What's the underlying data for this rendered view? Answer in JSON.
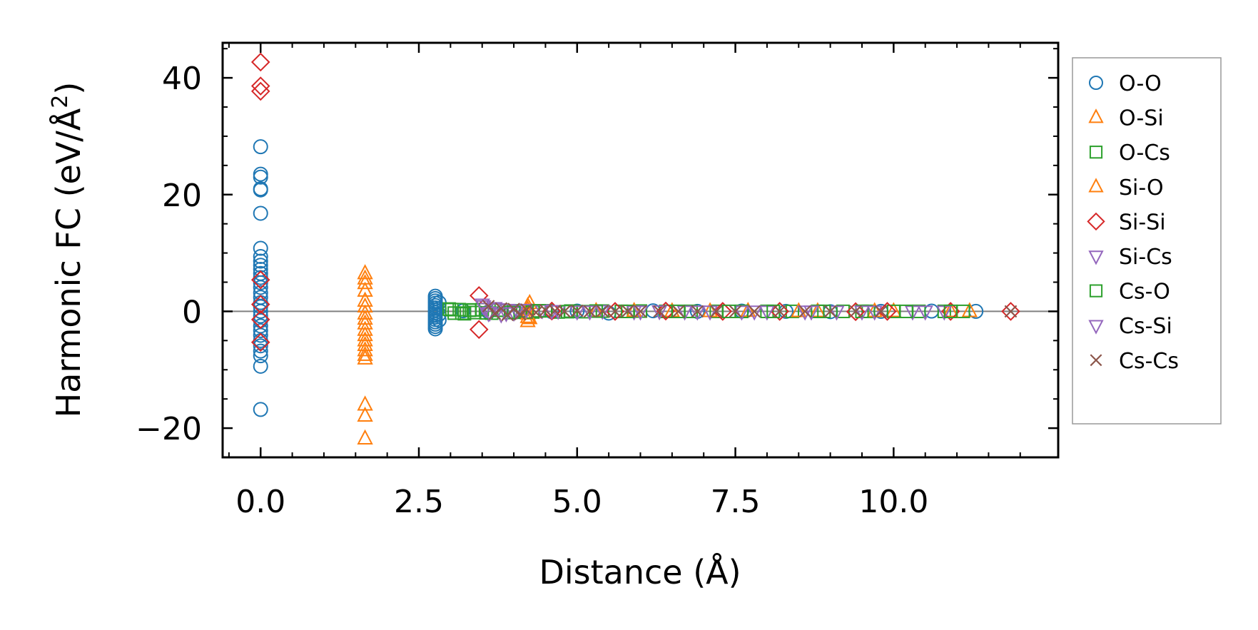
{
  "chart_data": {
    "type": "scatter",
    "title": "",
    "xlabel": "Distance (Å)",
    "ylabel_main": "Harmonic FC (eV/Å",
    "ylabel_sup": "2",
    "ylabel_close": ")",
    "xlim": [
      -0.6,
      12.6
    ],
    "ylim": [
      -25,
      46
    ],
    "xticks": [
      0.0,
      2.5,
      5.0,
      7.5,
      10.0
    ],
    "xtick_labels": [
      "0.0",
      "2.5",
      "5.0",
      "7.5",
      "10.0"
    ],
    "yticks": [
      -20,
      0,
      20,
      40
    ],
    "ytick_labels": [
      "−20",
      "0",
      "20",
      "40"
    ],
    "zero_line": true,
    "legend_position": "outside-right",
    "series": [
      {
        "name": "O-O",
        "marker": "circle",
        "color": "#1f77b4",
        "points": [
          [
            0,
            28.2
          ],
          [
            0,
            23.5
          ],
          [
            0,
            23
          ],
          [
            0,
            21
          ],
          [
            0,
            20.8
          ],
          [
            0,
            16.8
          ],
          [
            0,
            10.8
          ],
          [
            0,
            9.4
          ],
          [
            0,
            8.6
          ],
          [
            0,
            7.9
          ],
          [
            0,
            7.2
          ],
          [
            0,
            6.5
          ],
          [
            0,
            5.8
          ],
          [
            0,
            4.9
          ],
          [
            0,
            4.1
          ],
          [
            0,
            3.2
          ],
          [
            0,
            2.4
          ],
          [
            0,
            1.5
          ],
          [
            0,
            0.8
          ],
          [
            0,
            0
          ],
          [
            0,
            -0.8
          ],
          [
            0,
            -1.6
          ],
          [
            0,
            -2.5
          ],
          [
            0,
            -3.3
          ],
          [
            0,
            -4.1
          ],
          [
            0,
            -5
          ],
          [
            0,
            -5.9
          ],
          [
            0,
            -6.8
          ],
          [
            0,
            -7.6
          ],
          [
            0,
            -9.4
          ],
          [
            0,
            -16.8
          ],
          [
            2.76,
            2.6
          ],
          [
            2.76,
            2.2
          ],
          [
            2.76,
            1.8
          ],
          [
            2.76,
            1.4
          ],
          [
            2.76,
            1.0
          ],
          [
            2.76,
            0.6
          ],
          [
            2.76,
            0.2
          ],
          [
            2.76,
            -0.2
          ],
          [
            2.76,
            -0.6
          ],
          [
            2.76,
            -1.0
          ],
          [
            2.76,
            -1.4
          ],
          [
            2.76,
            -1.8
          ],
          [
            2.76,
            -2.2
          ],
          [
            2.76,
            -2.6
          ],
          [
            2.76,
            -3.0
          ],
          [
            2.82,
            1.5
          ],
          [
            2.82,
            0.5
          ],
          [
            2.82,
            -0.5
          ],
          [
            2.82,
            -1.5
          ],
          [
            3.2,
            0.1
          ],
          [
            3.6,
            -0.1
          ],
          [
            4.1,
            0.05
          ],
          [
            4.6,
            -0.05
          ],
          [
            5.0,
            0.05
          ],
          [
            5.5,
            -0.3
          ],
          [
            6.2,
            0.1
          ],
          [
            6.9,
            0.0
          ],
          [
            7.6,
            0.05
          ],
          [
            8.3,
            0.0
          ],
          [
            9.0,
            -0.05
          ],
          [
            9.8,
            0.0
          ],
          [
            10.6,
            0.05
          ],
          [
            11.3,
            0.0
          ]
        ]
      },
      {
        "name": "O-Si",
        "marker": "triangle-up",
        "color": "#ff7f0e",
        "points": [
          [
            1.65,
            6.5
          ],
          [
            1.65,
            5.6
          ],
          [
            1.65,
            4.8
          ],
          [
            1.65,
            3.5
          ],
          [
            1.65,
            1.8
          ],
          [
            1.65,
            0.8
          ],
          [
            1.65,
            -0.4
          ],
          [
            1.65,
            -1.3
          ],
          [
            1.65,
            -2.1
          ],
          [
            1.65,
            -3.2
          ],
          [
            1.65,
            -4.1
          ],
          [
            1.65,
            -5.0
          ],
          [
            1.65,
            -5.8
          ],
          [
            1.65,
            -6.7
          ],
          [
            1.65,
            -7.5
          ],
          [
            1.65,
            -8.1
          ],
          [
            1.65,
            -16
          ],
          [
            1.65,
            -17.9
          ],
          [
            1.65,
            -21.8
          ],
          [
            4.22,
            0.9
          ],
          [
            4.22,
            0.3
          ],
          [
            4.22,
            -0.4
          ],
          [
            4.22,
            -1.0
          ],
          [
            4.22,
            -1.7
          ],
          [
            5.3,
            0.05
          ],
          [
            6.5,
            0.0
          ],
          [
            7.7,
            0.05
          ],
          [
            8.8,
            0.0
          ],
          [
            10.0,
            0.0
          ],
          [
            11.2,
            0.0
          ]
        ]
      },
      {
        "name": "O-Cs",
        "marker": "square",
        "color": "#2ca02c",
        "points": [
          [
            2.98,
            0.4
          ],
          [
            3.06,
            -0.3
          ],
          [
            3.14,
            0.3
          ],
          [
            3.22,
            -0.4
          ],
          [
            3.3,
            0.2
          ],
          [
            3.38,
            -0.2
          ],
          [
            3.5,
            0.3
          ],
          [
            3.65,
            -0.3
          ],
          [
            3.8,
            0.2
          ],
          [
            3.95,
            -0.2
          ],
          [
            4.1,
            0.1
          ],
          [
            4.3,
            -0.1
          ],
          [
            4.5,
            0.1
          ],
          [
            4.7,
            -0.1
          ],
          [
            4.9,
            0.05
          ],
          [
            5.1,
            -0.05
          ],
          [
            5.4,
            0.05
          ],
          [
            5.7,
            0.0
          ],
          [
            6.0,
            0.05
          ],
          [
            6.4,
            0.0
          ],
          [
            6.8,
            0.0
          ],
          [
            7.2,
            0.0
          ],
          [
            7.6,
            0.0
          ],
          [
            8.0,
            0.0
          ],
          [
            8.4,
            0.0
          ],
          [
            8.8,
            0.0
          ],
          [
            9.2,
            0.0
          ],
          [
            9.6,
            0.0
          ],
          [
            10.0,
            0.0
          ],
          [
            10.4,
            0.0
          ],
          [
            10.8,
            0.0
          ],
          [
            11.1,
            0.0
          ]
        ]
      },
      {
        "name": "Si-O",
        "marker": "triangle-up",
        "color": "#ff7f0e",
        "points": [
          [
            4.25,
            1.4
          ],
          [
            4.25,
            -1.2
          ],
          [
            5.9,
            0.05
          ],
          [
            7.1,
            0.0
          ],
          [
            8.5,
            0.0
          ],
          [
            9.7,
            0.0
          ],
          [
            10.9,
            0.0
          ]
        ]
      },
      {
        "name": "Si-Si",
        "marker": "diamond",
        "color": "#d62728",
        "points": [
          [
            0,
            42.7
          ],
          [
            0,
            38.6
          ],
          [
            0,
            37.7
          ],
          [
            0,
            5.4
          ],
          [
            0,
            1.2
          ],
          [
            0,
            -1.4
          ],
          [
            0,
            -5.3
          ],
          [
            3.45,
            2.7
          ],
          [
            3.45,
            -3.1
          ],
          [
            4.6,
            0.05
          ],
          [
            5.6,
            0.0
          ],
          [
            6.4,
            0.05
          ],
          [
            7.3,
            0.0
          ],
          [
            8.2,
            0.0
          ],
          [
            9.4,
            -0.05
          ],
          [
            9.9,
            0.0
          ],
          [
            10.9,
            0.0
          ],
          [
            11.85,
            0.0
          ]
        ]
      },
      {
        "name": "Si-Cs",
        "marker": "triangle-down",
        "color": "#9467bd",
        "points": [
          [
            3.5,
            1.2
          ],
          [
            3.55,
            0.5
          ],
          [
            3.6,
            -0.3
          ],
          [
            3.7,
            0.6
          ],
          [
            3.8,
            -0.5
          ],
          [
            3.9,
            0.3
          ],
          [
            4.0,
            -0.2
          ],
          [
            4.2,
            0.3
          ],
          [
            4.45,
            0.2
          ],
          [
            4.7,
            0.1
          ],
          [
            5.0,
            0.0
          ],
          [
            5.4,
            0.1
          ],
          [
            5.9,
            0.0
          ],
          [
            6.3,
            0.05
          ],
          [
            6.7,
            0.0
          ],
          [
            7.1,
            0.0
          ],
          [
            7.6,
            0.0
          ],
          [
            8.0,
            0.0
          ],
          [
            8.6,
            0.0
          ],
          [
            9.1,
            0.0
          ],
          [
            9.7,
            0.0
          ],
          [
            10.3,
            0.0
          ],
          [
            10.8,
            0.0
          ]
        ]
      },
      {
        "name": "Cs-O",
        "marker": "square",
        "color": "#2ca02c",
        "points": [
          [
            3.02,
            0.3
          ],
          [
            3.18,
            -0.3
          ],
          [
            3.36,
            0.25
          ],
          [
            3.56,
            -0.25
          ],
          [
            3.76,
            0.2
          ],
          [
            4.0,
            -0.15
          ],
          [
            4.4,
            0.1
          ],
          [
            4.85,
            -0.05
          ],
          [
            5.3,
            0.05
          ],
          [
            5.8,
            0.0
          ],
          [
            6.6,
            0.0
          ],
          [
            7.4,
            0.0
          ],
          [
            8.1,
            0.0
          ],
          [
            8.9,
            0.0
          ],
          [
            9.5,
            0.0
          ],
          [
            10.2,
            0.0
          ],
          [
            10.9,
            0.0
          ]
        ]
      },
      {
        "name": "Cs-Si",
        "marker": "triangle-down",
        "color": "#9467bd",
        "points": [
          [
            3.52,
            0.9
          ],
          [
            3.62,
            -0.2
          ],
          [
            3.75,
            0.4
          ],
          [
            3.88,
            -0.3
          ],
          [
            4.05,
            0.2
          ],
          [
            4.6,
            0.1
          ],
          [
            5.2,
            0.0
          ],
          [
            6.0,
            0.0
          ],
          [
            6.9,
            0.0
          ],
          [
            7.8,
            0.0
          ],
          [
            8.7,
            0.0
          ],
          [
            9.5,
            0.0
          ],
          [
            10.5,
            0.0
          ]
        ]
      },
      {
        "name": "Cs-Cs",
        "marker": "x",
        "color": "#8c564b",
        "points": [
          [
            3.6,
            0.9
          ],
          [
            3.7,
            -0.4
          ],
          [
            3.8,
            0.5
          ],
          [
            3.9,
            -0.6
          ],
          [
            4.0,
            0.4
          ],
          [
            4.1,
            -0.5
          ],
          [
            4.2,
            0.3
          ],
          [
            4.35,
            -0.2
          ],
          [
            4.5,
            0.2
          ],
          [
            4.65,
            0.1
          ],
          [
            4.8,
            0.0
          ],
          [
            5.0,
            0.1
          ],
          [
            5.2,
            0.0
          ],
          [
            5.4,
            0.05
          ],
          [
            5.6,
            0.0
          ],
          [
            5.8,
            0.05
          ],
          [
            6.0,
            0.0
          ],
          [
            6.3,
            0.0
          ],
          [
            6.6,
            0.0
          ],
          [
            6.9,
            0.0
          ],
          [
            7.2,
            0.0
          ],
          [
            7.5,
            0.0
          ],
          [
            7.8,
            0.0
          ],
          [
            8.2,
            0.0
          ],
          [
            8.6,
            0.0
          ],
          [
            9.0,
            0.0
          ],
          [
            9.4,
            0.0
          ],
          [
            9.8,
            0.0
          ],
          [
            11.85,
            0.0
          ]
        ]
      }
    ]
  }
}
